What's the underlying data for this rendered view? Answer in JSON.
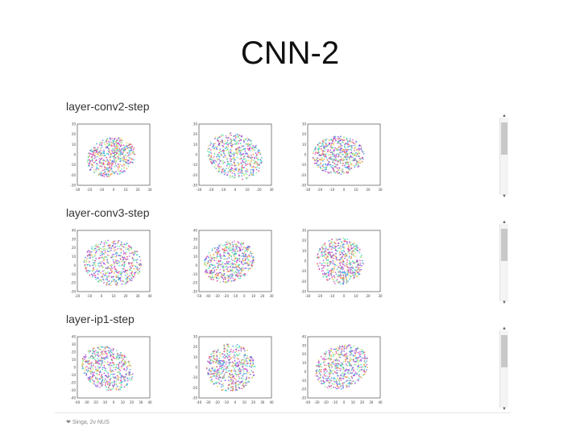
{
  "slide": {
    "title": "CNN-2"
  },
  "sections": [
    {
      "title": "layer-conv2-step",
      "plots": [
        {
          "xticks": [
            "-30",
            "-20",
            "-10",
            "0",
            "10",
            "20",
            "30"
          ],
          "yticks": [
            "30",
            "20",
            "10",
            "0",
            "-10",
            "-20",
            "-30"
          ]
        },
        {
          "xticks": [
            "-30",
            "-20",
            "-10",
            "0",
            "10",
            "20",
            "30"
          ],
          "yticks": [
            "30",
            "20",
            "10",
            "0",
            "-10",
            "-20",
            "-30"
          ]
        },
        {
          "xticks": [
            "-30",
            "-20",
            "-10",
            "0",
            "10",
            "20",
            "30"
          ],
          "yticks": [
            "30",
            "20",
            "10",
            "0",
            "-10",
            "-20",
            "-30"
          ]
        }
      ]
    },
    {
      "title": "layer-conv3-step",
      "plots": [
        {
          "xticks": [
            "-20",
            "-10",
            "0",
            "10",
            "20",
            "30",
            "40"
          ],
          "yticks": [
            "40",
            "30",
            "20",
            "10",
            "0",
            "-10",
            "-20",
            "-30"
          ]
        },
        {
          "xticks": [
            "-50",
            "-40",
            "-30",
            "-20",
            "-10",
            "0",
            "10",
            "20",
            "30"
          ],
          "yticks": [
            "40",
            "30",
            "20",
            "10",
            "0",
            "-10",
            "-20",
            "-30"
          ]
        },
        {
          "xticks": [
            "-30",
            "-20",
            "-10",
            "0",
            "10",
            "20",
            "30"
          ],
          "yticks": [
            "30",
            "20",
            "10",
            "0",
            "-10",
            "-20",
            "-30"
          ]
        }
      ]
    },
    {
      "title": "layer-ip1-step",
      "plots": [
        {
          "xticks": [
            "-40",
            "-30",
            "-20",
            "-10",
            "0",
            "10",
            "20",
            "30",
            "40"
          ],
          "yticks": [
            "40",
            "30",
            "20",
            "10",
            "0",
            "-10",
            "-20",
            "-30",
            "-40"
          ]
        },
        {
          "xticks": [
            "-40",
            "-30",
            "-20",
            "-10",
            "0",
            "10",
            "20",
            "30",
            "40"
          ],
          "yticks": [
            "30",
            "20",
            "10",
            "0",
            "-10",
            "-20",
            "-30"
          ]
        },
        {
          "xticks": [
            "-40",
            "-30",
            "-20",
            "-10",
            "0",
            "10",
            "20",
            "30",
            "40"
          ],
          "yticks": [
            "40",
            "30",
            "20",
            "10",
            "0",
            "-10",
            "-20",
            "-30"
          ]
        }
      ]
    }
  ],
  "footer": {
    "text": "Singa, 2v NUS",
    "icon": "heart-icon"
  },
  "colors": {
    "points": [
      "#e63b8a",
      "#7a5cd6",
      "#39d4c8",
      "#8fe38a",
      "#f29a4a",
      "#4a8fe6",
      "#d65cd0",
      "#5ee6b0",
      "#e6d25c",
      "#9a4ae6"
    ]
  }
}
